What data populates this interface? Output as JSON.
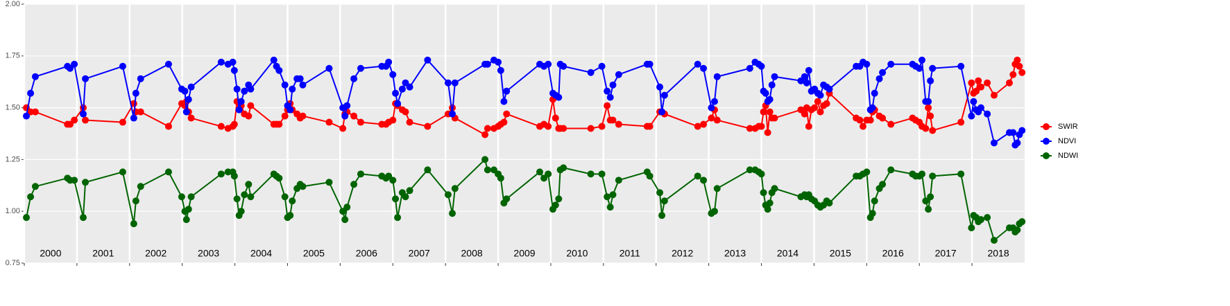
{
  "chart_data": {
    "type": "line",
    "x": [
      2000.04,
      2000.12,
      2000.21,
      2000.82,
      2000.87,
      2000.95,
      2001.12,
      2001.16,
      2001.87,
      2002.08,
      2002.12,
      2002.21,
      2002.74,
      2002.99,
      2003.05,
      2003.08,
      2003.12,
      2003.17,
      2003.74,
      2003.87,
      2003.96,
      2003.99,
      2004.04,
      2004.08,
      2004.12,
      2004.18,
      2004.26,
      2004.3,
      2004.74,
      2004.79,
      2004.84,
      2004.95,
      2005.0,
      2005.05,
      2005.09,
      2005.18,
      2005.24,
      2005.29,
      2005.79,
      2006.05,
      2006.09,
      2006.13,
      2006.26,
      2006.39,
      2006.79,
      2006.87,
      2006.92,
      2007.0,
      2007.05,
      2007.09,
      2007.18,
      2007.24,
      2007.32,
      2007.66,
      2008.05,
      2008.13,
      2008.18,
      2008.75,
      2008.8,
      2008.92,
      2009.0,
      2009.05,
      2009.11,
      2009.16,
      2009.79,
      2009.87,
      2009.95,
      2010.04,
      2010.09,
      2010.15,
      2010.18,
      2010.24,
      2010.76,
      2010.97,
      2011.07,
      2011.13,
      2011.18,
      2011.29,
      2011.83,
      2011.88,
      2012.07,
      2012.11,
      2012.16,
      2012.79,
      2012.9,
      2013.05,
      2013.11,
      2013.16,
      2013.78,
      2013.88,
      2013.95,
      2014.0,
      2014.04,
      2014.08,
      2014.12,
      2014.16,
      2014.2,
      2014.25,
      2014.75,
      2014.82,
      2014.86,
      2014.9,
      2014.95,
      2015.01,
      2015.07,
      2015.12,
      2015.18,
      2015.24,
      2015.29,
      2015.8,
      2015.87,
      2015.93,
      2016.0,
      2016.07,
      2016.11,
      2016.15,
      2016.24,
      2016.3,
      2016.46,
      2016.87,
      2016.93,
      2017.0,
      2017.05,
      2017.12,
      2017.17,
      2017.21,
      2017.25,
      2017.79,
      2017.99,
      2018.03,
      2018.08,
      2018.12,
      2018.17,
      2018.29,
      2018.42,
      2018.71,
      2018.78,
      2018.82,
      2018.86,
      2018.9,
      2018.95
    ],
    "series": [
      {
        "name": "SWIR",
        "color": "#ff0000",
        "values": [
          1.5,
          1.48,
          1.48,
          1.42,
          1.42,
          1.44,
          1.5,
          1.44,
          1.43,
          1.52,
          1.48,
          1.48,
          1.41,
          1.52,
          1.51,
          1.53,
          1.48,
          1.45,
          1.41,
          1.4,
          1.41,
          1.42,
          1.53,
          1.52,
          1.51,
          1.47,
          1.46,
          1.51,
          1.42,
          1.42,
          1.42,
          1.46,
          1.49,
          1.52,
          1.49,
          1.47,
          1.45,
          1.46,
          1.43,
          1.4,
          1.47,
          1.48,
          1.46,
          1.43,
          1.42,
          1.42,
          1.43,
          1.44,
          1.52,
          1.51,
          1.49,
          1.48,
          1.43,
          1.41,
          1.47,
          1.5,
          1.45,
          1.37,
          1.4,
          1.4,
          1.41,
          1.42,
          1.43,
          1.47,
          1.41,
          1.42,
          1.41,
          1.54,
          1.45,
          1.4,
          1.4,
          1.4,
          1.4,
          1.41,
          1.51,
          1.44,
          1.44,
          1.42,
          1.41,
          1.41,
          1.48,
          1.48,
          1.47,
          1.41,
          1.42,
          1.45,
          1.49,
          1.44,
          1.4,
          1.4,
          1.41,
          1.41,
          1.48,
          1.51,
          1.38,
          1.48,
          1.45,
          1.45,
          1.49,
          1.47,
          1.5,
          1.41,
          1.49,
          1.5,
          1.53,
          1.48,
          1.51,
          1.52,
          1.57,
          1.45,
          1.44,
          1.41,
          1.44,
          1.44,
          1.48,
          1.49,
          1.46,
          1.45,
          1.42,
          1.45,
          1.44,
          1.43,
          1.41,
          1.4,
          1.5,
          1.46,
          1.39,
          1.43,
          1.62,
          1.57,
          1.58,
          1.63,
          1.6,
          1.62,
          1.56,
          1.62,
          1.66,
          1.71,
          1.73,
          1.7,
          1.67
        ]
      },
      {
        "name": "NDVI",
        "color": "#0000ff",
        "values": [
          1.46,
          1.57,
          1.65,
          1.7,
          1.69,
          1.71,
          1.47,
          1.64,
          1.7,
          1.45,
          1.57,
          1.64,
          1.71,
          1.59,
          1.58,
          1.48,
          1.54,
          1.6,
          1.72,
          1.71,
          1.72,
          1.68,
          1.59,
          1.49,
          1.53,
          1.58,
          1.61,
          1.59,
          1.73,
          1.7,
          1.68,
          1.61,
          1.51,
          1.49,
          1.59,
          1.64,
          1.64,
          1.61,
          1.69,
          1.5,
          1.46,
          1.51,
          1.64,
          1.69,
          1.7,
          1.7,
          1.72,
          1.66,
          1.57,
          1.52,
          1.59,
          1.62,
          1.6,
          1.73,
          1.62,
          1.47,
          1.62,
          1.71,
          1.71,
          1.73,
          1.72,
          1.68,
          1.53,
          1.58,
          1.71,
          1.7,
          1.71,
          1.57,
          1.56,
          1.55,
          1.71,
          1.7,
          1.67,
          1.7,
          1.58,
          1.55,
          1.61,
          1.66,
          1.71,
          1.71,
          1.6,
          1.48,
          1.56,
          1.71,
          1.69,
          1.5,
          1.53,
          1.65,
          1.69,
          1.72,
          1.71,
          1.7,
          1.58,
          1.57,
          1.53,
          1.54,
          1.61,
          1.65,
          1.63,
          1.65,
          1.62,
          1.68,
          1.58,
          1.59,
          1.57,
          1.56,
          1.61,
          1.6,
          1.59,
          1.7,
          1.7,
          1.72,
          1.71,
          1.49,
          1.5,
          1.57,
          1.64,
          1.67,
          1.71,
          1.71,
          1.7,
          1.69,
          1.73,
          1.53,
          1.53,
          1.63,
          1.69,
          1.7,
          1.46,
          1.53,
          1.49,
          1.48,
          1.5,
          1.47,
          1.33,
          1.38,
          1.38,
          1.32,
          1.33,
          1.37,
          1.39
        ]
      },
      {
        "name": "NDWI",
        "color": "#006400",
        "values": [
          0.97,
          1.07,
          1.12,
          1.16,
          1.15,
          1.15,
          0.97,
          1.14,
          1.19,
          0.94,
          1.05,
          1.12,
          1.19,
          1.07,
          1.0,
          0.96,
          1.01,
          1.07,
          1.18,
          1.19,
          1.19,
          1.17,
          1.06,
          0.98,
          1.0,
          1.08,
          1.13,
          1.07,
          1.18,
          1.17,
          1.16,
          1.07,
          0.97,
          0.98,
          1.05,
          1.11,
          1.13,
          1.12,
          1.14,
          1.0,
          0.96,
          1.02,
          1.13,
          1.18,
          1.17,
          1.16,
          1.17,
          1.15,
          1.06,
          0.97,
          1.09,
          1.07,
          1.1,
          1.2,
          1.08,
          0.99,
          1.11,
          1.25,
          1.2,
          1.2,
          1.18,
          1.16,
          1.04,
          1.06,
          1.19,
          1.16,
          1.18,
          1.01,
          1.03,
          1.06,
          1.2,
          1.21,
          1.18,
          1.18,
          1.07,
          1.02,
          1.08,
          1.15,
          1.19,
          1.17,
          1.09,
          0.98,
          1.05,
          1.17,
          1.15,
          0.99,
          1.0,
          1.11,
          1.2,
          1.2,
          1.19,
          1.18,
          1.09,
          1.03,
          1.01,
          1.04,
          1.09,
          1.11,
          1.07,
          1.08,
          1.07,
          1.08,
          1.06,
          1.05,
          1.03,
          1.02,
          1.03,
          1.05,
          1.04,
          1.17,
          1.17,
          1.18,
          1.19,
          0.97,
          0.99,
          1.05,
          1.11,
          1.13,
          1.2,
          1.18,
          1.17,
          1.17,
          1.18,
          1.05,
          1.01,
          1.07,
          1.17,
          1.18,
          0.92,
          0.98,
          0.97,
          0.95,
          0.96,
          0.97,
          0.86,
          0.92,
          0.92,
          0.9,
          0.91,
          0.94,
          0.95
        ]
      }
    ],
    "xlim": [
      2000,
      2019
    ],
    "xticks": [
      2000,
      2001,
      2002,
      2003,
      2004,
      2005,
      2006,
      2007,
      2008,
      2009,
      2010,
      2011,
      2012,
      2013,
      2014,
      2015,
      2016,
      2017,
      2018
    ],
    "ylim": [
      0.75,
      2.0
    ],
    "yticks": [
      {
        "value": 0.75,
        "label": "0.75"
      },
      {
        "value": 1.0,
        "label": "1.00"
      },
      {
        "value": 1.25,
        "label": "1.25"
      },
      {
        "value": 1.5,
        "label": "1.50"
      },
      {
        "value": 1.75,
        "label": "1.75"
      },
      {
        "value": 2.0,
        "label": "2.00"
      }
    ],
    "grid": true,
    "legend": "right"
  }
}
